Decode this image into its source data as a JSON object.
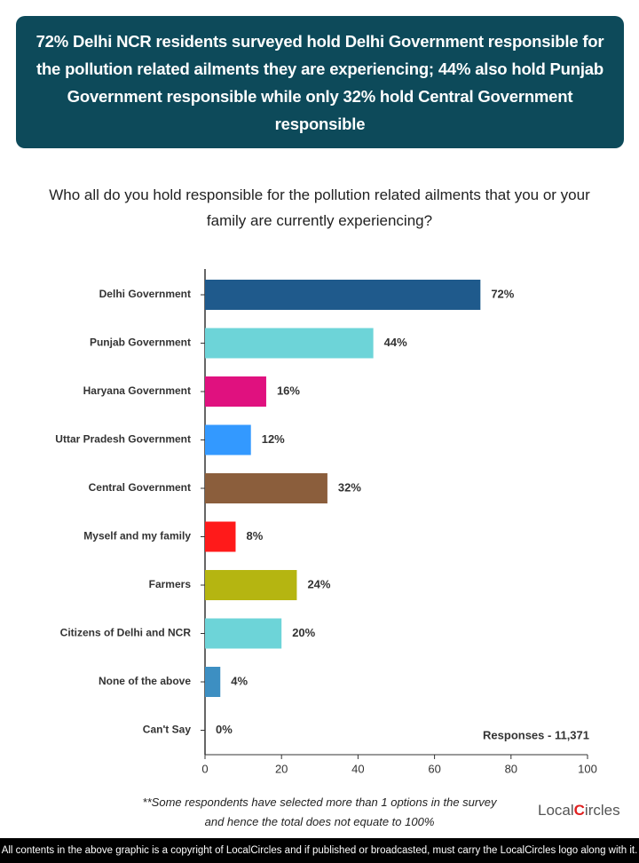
{
  "chart_data": {
    "type": "bar",
    "title": "72% Delhi NCR residents surveyed hold Delhi Government responsible for the pollution related ailments they are experiencing; 44% also hold Punjab Government responsible while only 32% hold Central Government responsible",
    "subtitle": "Who all do you hold responsible for the pollution related ailments that you or your family are currently experiencing?",
    "categories": [
      "Delhi Government",
      "Punjab Government",
      "Haryana Government",
      "Uttar Pradesh Government",
      "Central Government",
      "Myself and my family",
      "Farmers",
      "Citizens of Delhi and NCR",
      "None of the above",
      "Can't Say"
    ],
    "values": [
      72,
      44,
      16,
      12,
      32,
      8,
      24,
      20,
      4,
      0
    ],
    "value_labels": [
      "72%",
      "44%",
      "16%",
      "12%",
      "32%",
      "8%",
      "24%",
      "20%",
      "4%",
      "0%"
    ],
    "colors": [
      "#1f5a8c",
      "#6dd4d8",
      "#e0117f",
      "#3399ff",
      "#8b5e3c",
      "#ff1a1a",
      "#b5b511",
      "#6dd4d8",
      "#3d8fc2",
      "#3d8fc2"
    ],
    "xlim": [
      0,
      100
    ],
    "xticks": [
      0,
      20,
      40,
      60,
      80,
      100
    ],
    "annotation": "Responses - 11,371",
    "footnote": [
      "**Some respondents have selected more than 1 options in the survey",
      "and hence the total does not equate to 100%"
    ],
    "logo": [
      "Local",
      "C",
      "ircles"
    ],
    "copyright": "All contents in the above graphic is a copyright of LocalCircles and if published or broadcasted, must carry the LocalCircles logo along with it."
  }
}
